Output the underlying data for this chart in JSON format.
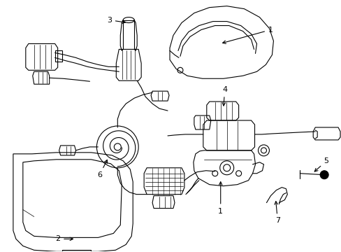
{
  "figsize": [
    4.89,
    3.6
  ],
  "dpi": 100,
  "background_color": "#ffffff",
  "line_color": "#000000",
  "lw": 0.8
}
